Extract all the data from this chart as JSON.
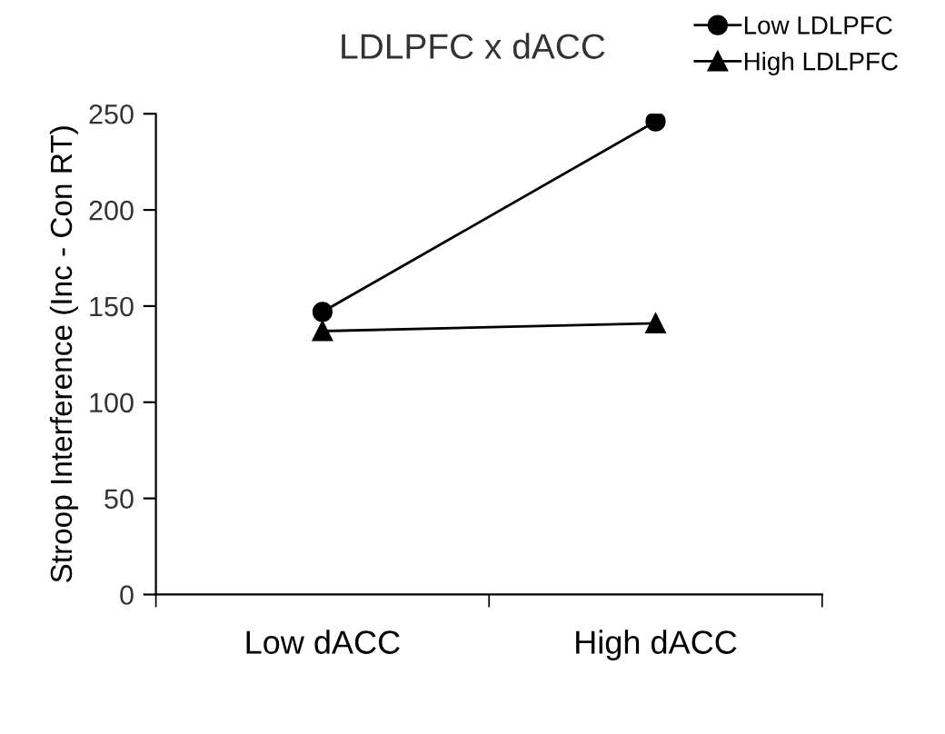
{
  "chart_data": {
    "type": "line",
    "title": "LDLPFC x dACC",
    "ylabel": "Stroop Interference (Inc - Con RT)",
    "categories": [
      "Low dACC",
      "High dACC"
    ],
    "series": [
      {
        "name": "Low LDLPFC",
        "color": "#000000",
        "values": [
          147,
          246
        ],
        "marker": "circle"
      },
      {
        "name": "High LDLPFC",
        "color": "#000000",
        "values": [
          137,
          141
        ],
        "marker": "triangle"
      }
    ],
    "ylim": [
      0,
      250
    ],
    "yticks": [
      0,
      50,
      100,
      150,
      200,
      250
    ],
    "grid": false,
    "legend": "top right",
    "line_style": "solid"
  }
}
